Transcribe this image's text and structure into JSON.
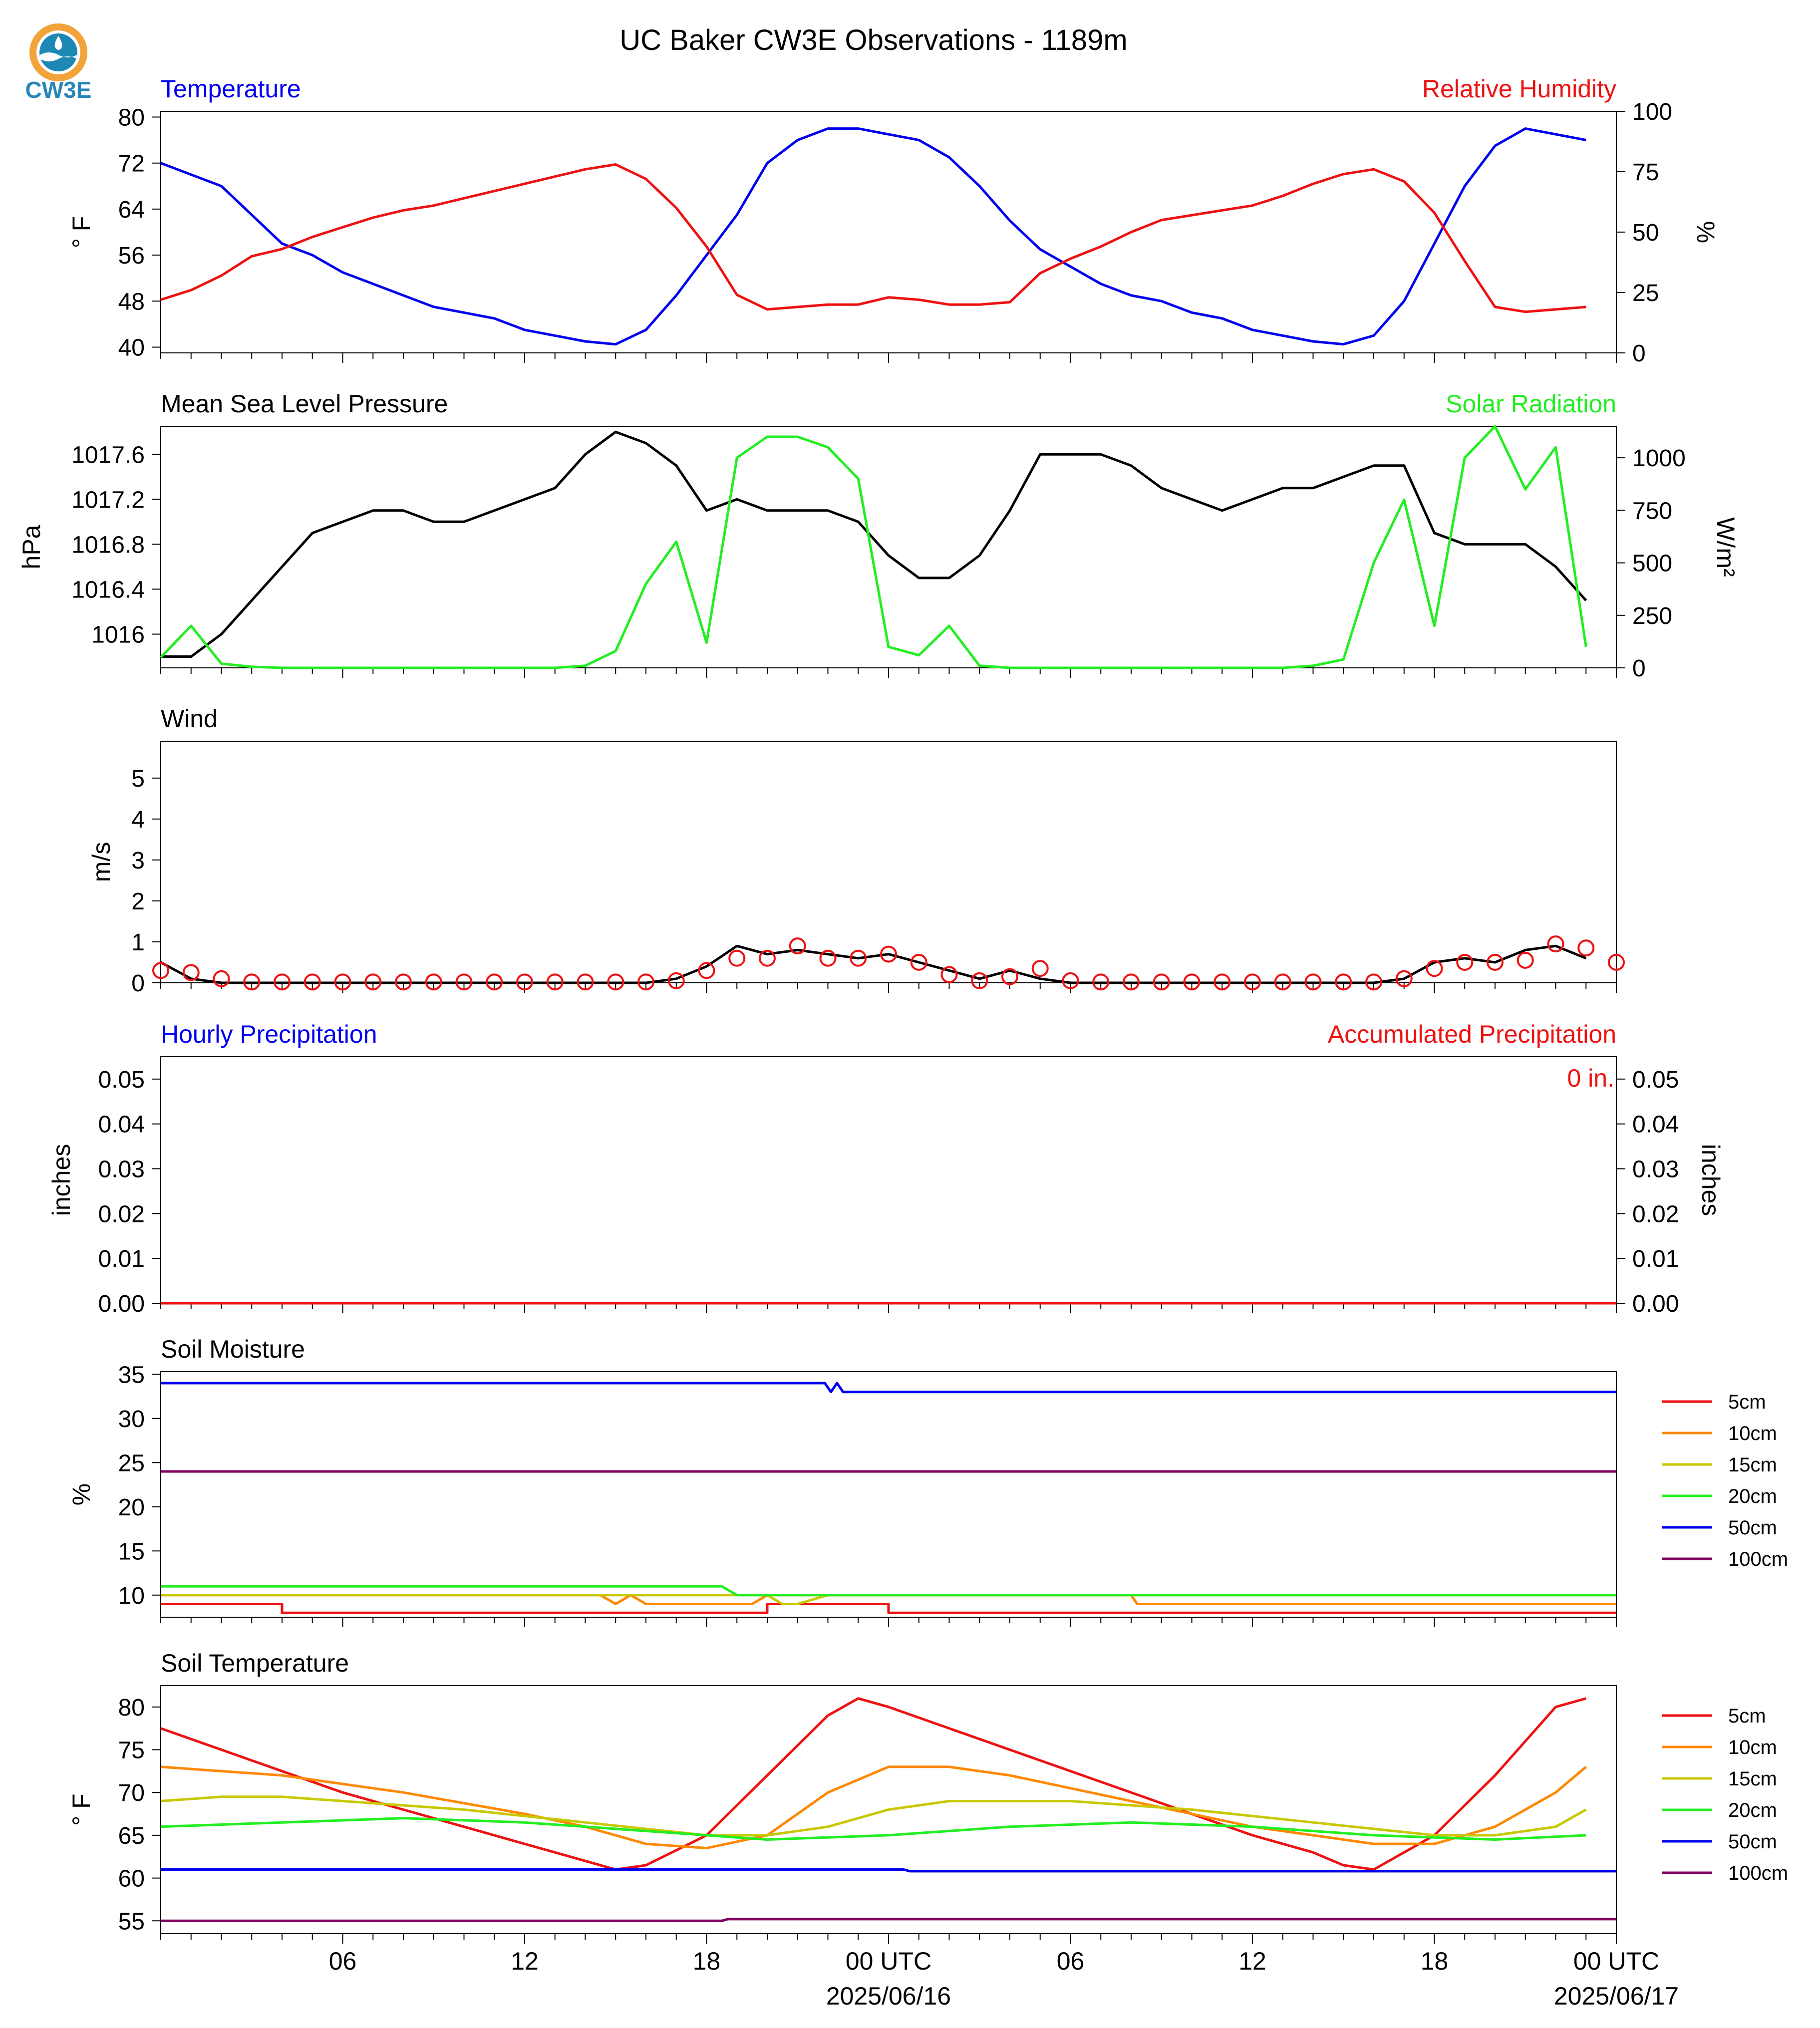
{
  "logo": {
    "text": "CW3E",
    "colors": {
      "ring": "#f2a33a",
      "wave": "#1e88b5",
      "text": "#2a86b8"
    }
  },
  "title": "UC Baker CW3E Observations - 1189m",
  "x_axis": {
    "hour_labels": [
      "06",
      "12",
      "18",
      "00 UTC",
      "06",
      "12",
      "18",
      "00 UTC"
    ],
    "hour_positions": [
      6,
      12,
      18,
      24,
      30,
      36,
      42,
      48
    ],
    "date_labels": [
      "2025/06/16",
      "2025/06/17"
    ],
    "date_positions": [
      24,
      48
    ],
    "range_hours": [
      0,
      48
    ]
  },
  "colors": {
    "blue": "#0000ee",
    "red": "#ee1111",
    "green": "#22ee22",
    "black": "#000000"
  },
  "chart_data": [
    {
      "type": "line",
      "title_left": "Temperature",
      "title_right": "Relative Humidity",
      "ylabel_left": "° F",
      "ylabel_right": "%",
      "ylim_left": [
        39,
        81
      ],
      "yticks_left": [
        40,
        48,
        56,
        64,
        72,
        80
      ],
      "ylim_right": [
        0,
        100
      ],
      "yticks_right": [
        0,
        25,
        50,
        75,
        100
      ],
      "series": [
        {
          "axis": "left",
          "color": "#0000ee",
          "x": [
            0,
            1,
            2,
            3,
            4,
            5,
            6,
            7,
            8,
            9,
            10,
            11,
            12,
            13,
            14,
            15,
            16,
            17,
            18,
            19,
            20,
            21,
            22,
            23,
            24,
            25,
            26,
            27,
            28,
            29,
            30,
            31,
            32,
            33,
            34,
            35,
            36,
            37,
            38,
            39,
            40,
            41,
            42,
            43,
            44,
            45,
            46,
            47
          ],
          "y": [
            72,
            70,
            68,
            63,
            58,
            56,
            53,
            51,
            49,
            47,
            46,
            45,
            43,
            42,
            41,
            40.5,
            43,
            49,
            56,
            63,
            72,
            76,
            78,
            78,
            77,
            76,
            73,
            68,
            62,
            57,
            54,
            51,
            49,
            48,
            46,
            45,
            43,
            42,
            41,
            40.5,
            42,
            48,
            58,
            68,
            75,
            78,
            77,
            76
          ]
        },
        {
          "axis": "right",
          "color": "#ee1111",
          "x": [
            0,
            1,
            2,
            3,
            4,
            5,
            6,
            7,
            8,
            9,
            10,
            11,
            12,
            13,
            14,
            15,
            16,
            17,
            18,
            19,
            20,
            21,
            22,
            23,
            24,
            25,
            26,
            27,
            28,
            29,
            30,
            31,
            32,
            33,
            34,
            35,
            36,
            37,
            38,
            39,
            40,
            41,
            42,
            43,
            44,
            45,
            46,
            47
          ],
          "y": [
            22,
            26,
            32,
            40,
            43,
            48,
            52,
            56,
            59,
            61,
            64,
            67,
            70,
            73,
            76,
            78,
            72,
            60,
            44,
            24,
            18,
            19,
            20,
            20,
            23,
            22,
            20,
            20,
            21,
            33,
            39,
            44,
            50,
            55,
            57,
            59,
            61,
            65,
            70,
            74,
            76,
            71,
            58,
            38,
            19,
            17,
            18,
            19
          ]
        }
      ]
    },
    {
      "type": "line",
      "title_left": "Mean Sea Level Pressure",
      "title_right": "Solar Radiation",
      "ylabel_left": "hPa",
      "ylabel_right": "W/m²",
      "ylim_left": [
        1015.7,
        1017.85
      ],
      "yticks_left": [
        1016.0,
        1016.4,
        1016.8,
        1017.2,
        1017.6
      ],
      "ylim_right": [
        0,
        1150
      ],
      "yticks_right": [
        0,
        250,
        500,
        750,
        1000
      ],
      "series": [
        {
          "axis": "left",
          "color": "#000000",
          "x": [
            0,
            1,
            2,
            3,
            4,
            5,
            6,
            7,
            8,
            9,
            10,
            11,
            12,
            13,
            14,
            15,
            16,
            17,
            18,
            19,
            20,
            21,
            22,
            23,
            24,
            25,
            26,
            27,
            28,
            29,
            30,
            31,
            32,
            33,
            34,
            35,
            36,
            37,
            38,
            39,
            40,
            41,
            42,
            43,
            44,
            45,
            46,
            47
          ],
          "y": [
            1015.8,
            1015.8,
            1016.0,
            1016.3,
            1016.6,
            1016.9,
            1017.0,
            1017.1,
            1017.1,
            1017.0,
            1017.0,
            1017.1,
            1017.2,
            1017.3,
            1017.6,
            1017.8,
            1017.7,
            1017.5,
            1017.1,
            1017.2,
            1017.1,
            1017.1,
            1017.1,
            1017.0,
            1016.7,
            1016.5,
            1016.5,
            1016.7,
            1017.1,
            1017.6,
            1017.6,
            1017.6,
            1017.5,
            1017.3,
            1017.2,
            1017.1,
            1017.2,
            1017.3,
            1017.3,
            1017.4,
            1017.5,
            1017.5,
            1016.9,
            1016.8,
            1016.8,
            1016.8,
            1016.6,
            1016.3
          ]
        },
        {
          "axis": "right",
          "color": "#22ee22",
          "x": [
            0,
            1,
            2,
            3,
            4,
            5,
            6,
            7,
            8,
            9,
            10,
            11,
            12,
            13,
            14,
            15,
            16,
            17,
            18,
            19,
            20,
            21,
            22,
            23,
            24,
            25,
            26,
            27,
            28,
            29,
            30,
            31,
            32,
            33,
            34,
            35,
            36,
            37,
            38,
            39,
            40,
            41,
            42,
            43,
            44,
            45,
            46,
            47
          ],
          "y": [
            50,
            200,
            20,
            5,
            0,
            0,
            0,
            0,
            0,
            0,
            0,
            0,
            0,
            0,
            10,
            80,
            400,
            600,
            120,
            1000,
            1100,
            1100,
            1050,
            900,
            100,
            60,
            200,
            10,
            0,
            0,
            0,
            0,
            0,
            0,
            0,
            0,
            0,
            0,
            10,
            40,
            500,
            800,
            200,
            1000,
            1150,
            850,
            1050,
            100
          ]
        }
      ]
    },
    {
      "type": "line",
      "title_left": "Wind",
      "ylabel_left": "m/s",
      "ylim_left": [
        0,
        5.9
      ],
      "yticks_left": [
        0,
        1,
        2,
        3,
        4,
        5
      ],
      "series": [
        {
          "axis": "left",
          "color": "#000000",
          "x": [
            0,
            1,
            2,
            3,
            4,
            5,
            6,
            7,
            8,
            9,
            10,
            11,
            12,
            13,
            14,
            15,
            16,
            17,
            18,
            19,
            20,
            21,
            22,
            23,
            24,
            25,
            26,
            27,
            28,
            29,
            30,
            31,
            32,
            33,
            34,
            35,
            36,
            37,
            38,
            39,
            40,
            41,
            42,
            43,
            44,
            45,
            46,
            47
          ],
          "y": [
            0.5,
            0.1,
            0,
            0,
            0,
            0,
            0,
            0,
            0,
            0,
            0,
            0,
            0,
            0,
            0,
            0,
            0,
            0.1,
            0.4,
            0.9,
            0.7,
            0.8,
            0.7,
            0.6,
            0.7,
            0.5,
            0.3,
            0.1,
            0.3,
            0.1,
            0,
            0,
            0,
            0,
            0,
            0,
            0,
            0,
            0,
            0,
            0,
            0.1,
            0.5,
            0.6,
            0.5,
            0.8,
            0.9,
            0.6
          ]
        },
        {
          "axis": "left",
          "color": "#ee1111",
          "marker": "circle",
          "x": [
            0,
            1,
            2,
            3,
            4,
            5,
            6,
            7,
            8,
            9,
            10,
            11,
            12,
            13,
            14,
            15,
            16,
            17,
            18,
            19,
            20,
            21,
            22,
            23,
            24,
            25,
            26,
            27,
            28,
            29,
            30,
            31,
            32,
            33,
            34,
            35,
            36,
            37,
            38,
            39,
            40,
            41,
            42,
            43,
            44,
            45,
            46,
            47,
            48
          ],
          "y": [
            0.3,
            0.25,
            0.1,
            0.02,
            0.02,
            0.02,
            0.02,
            0.02,
            0.02,
            0.02,
            0.02,
            0.02,
            0.02,
            0.02,
            0.02,
            0.02,
            0.02,
            0.05,
            0.3,
            0.6,
            0.6,
            0.9,
            0.6,
            0.6,
            0.7,
            0.5,
            0.2,
            0.05,
            0.15,
            0.35,
            0.05,
            0.02,
            0.02,
            0.02,
            0.02,
            0.02,
            0.02,
            0.02,
            0.02,
            0.02,
            0.02,
            0.1,
            0.35,
            0.5,
            0.5,
            0.55,
            0.95,
            0.85,
            0.5
          ]
        }
      ]
    },
    {
      "type": "line",
      "title_left": "Hourly Precipitation",
      "title_right": "Accumulated Precipitation",
      "annotation": "0 in.",
      "ylabel_left": "inches",
      "ylabel_right": "inches",
      "ylim_left": [
        0,
        0.055
      ],
      "yticks_left": [
        "0.00",
        "0.01",
        "0.02",
        "0.03",
        "0.04",
        "0.05"
      ],
      "ylim_right": [
        0,
        0.055
      ],
      "yticks_right": [
        "0.00",
        "0.01",
        "0.02",
        "0.03",
        "0.04",
        "0.05"
      ],
      "series": [
        {
          "axis": "left",
          "color": "#0000ee",
          "x": [
            0,
            48
          ],
          "y": [
            0,
            0
          ]
        },
        {
          "axis": "right",
          "color": "#ee1111",
          "x": [
            0,
            48
          ],
          "y": [
            0,
            0
          ]
        }
      ]
    },
    {
      "type": "line",
      "title_left": "Soil Moisture",
      "ylabel_left": "%",
      "ylim_left": [
        7.5,
        35.3
      ],
      "yticks_left": [
        10,
        15,
        20,
        25,
        30,
        35
      ],
      "legend": [
        "5cm",
        "10cm",
        "15cm",
        "20cm",
        "50cm",
        "100cm"
      ],
      "series": [
        {
          "name": "5cm",
          "color": "#ee1111",
          "x": [
            0,
            4,
            4,
            20,
            20,
            23,
            23,
            24,
            24,
            48
          ],
          "y": [
            9,
            9,
            8,
            8,
            9,
            9,
            9,
            9,
            8,
            8
          ]
        },
        {
          "name": "10cm",
          "color": "#ff8800",
          "x": [
            0,
            14.5,
            15,
            15.5,
            16,
            19.5,
            20,
            32,
            32.2,
            48
          ],
          "y": [
            10,
            10,
            9,
            10,
            9,
            9,
            10,
            10,
            9,
            9
          ]
        },
        {
          "name": "15cm",
          "color": "#c8c800",
          "x": [
            0,
            18,
            20,
            20.5,
            21,
            22,
            48
          ],
          "y": [
            10,
            10,
            10,
            9,
            9,
            10,
            10
          ]
        },
        {
          "name": "20cm",
          "color": "#22ee22",
          "x": [
            0,
            18.5,
            19,
            48
          ],
          "y": [
            11,
            11,
            10,
            10
          ]
        },
        {
          "name": "50cm",
          "color": "#0000ee",
          "x": [
            0,
            21.9,
            22.1,
            22.3,
            22.5,
            48
          ],
          "y": [
            34,
            34,
            33,
            34,
            33,
            33
          ]
        },
        {
          "name": "100cm",
          "color": "#800060",
          "x": [
            0,
            48
          ],
          "y": [
            24,
            24
          ]
        }
      ]
    },
    {
      "type": "line",
      "title_left": "Soil Temperature",
      "ylabel_left": "° F",
      "ylim_left": [
        53.5,
        82.5
      ],
      "yticks_left": [
        55,
        60,
        65,
        70,
        75,
        80
      ],
      "legend": [
        "5cm",
        "10cm",
        "15cm",
        "20cm",
        "50cm",
        "100cm"
      ],
      "series": [
        {
          "name": "5cm",
          "color": "#ee1111",
          "x": [
            0,
            2,
            4,
            6,
            8,
            10,
            12,
            14,
            15,
            16,
            18,
            20,
            22,
            23,
            24,
            26,
            28,
            30,
            32,
            34,
            36,
            38,
            39,
            40,
            42,
            44,
            46,
            47
          ],
          "y": [
            77.5,
            75,
            72.5,
            70,
            68,
            66,
            64,
            62,
            61,
            61.5,
            65,
            72,
            79,
            81,
            80,
            77.5,
            75,
            72.5,
            70,
            67.5,
            65,
            63,
            61.5,
            61,
            65,
            72,
            80,
            81
          ]
        },
        {
          "name": "10cm",
          "color": "#ff8800",
          "x": [
            0,
            4,
            8,
            12,
            14,
            16,
            18,
            20,
            22,
            24,
            26,
            28,
            32,
            36,
            38,
            40,
            42,
            44,
            46,
            47
          ],
          "y": [
            73,
            72,
            70,
            67.5,
            66,
            64,
            63.5,
            65,
            70,
            73,
            73,
            72,
            69,
            66,
            65,
            64,
            64,
            66,
            70,
            73
          ]
        },
        {
          "name": "15cm",
          "color": "#c8c800",
          "x": [
            0,
            2,
            4,
            6,
            10,
            14,
            18,
            20,
            22,
            24,
            26,
            28,
            30,
            34,
            38,
            42,
            44,
            46,
            47
          ],
          "y": [
            69,
            69.5,
            69.5,
            69,
            68,
            66.5,
            65,
            65,
            66,
            68,
            69,
            69,
            69,
            68,
            66.5,
            65,
            65,
            66,
            68
          ]
        },
        {
          "name": "20cm",
          "color": "#22ee22",
          "x": [
            0,
            4,
            8,
            12,
            16,
            20,
            24,
            28,
            32,
            36,
            40,
            44,
            47
          ],
          "y": [
            66,
            66.5,
            67,
            66.5,
            65.5,
            64.5,
            65,
            66,
            66.5,
            66,
            65,
            64.5,
            65
          ]
        },
        {
          "name": "50cm",
          "color": "#0000ee",
          "x": [
            0,
            24.5,
            24.7,
            48
          ],
          "y": [
            61,
            61,
            60.8,
            60.8
          ]
        },
        {
          "name": "100cm",
          "color": "#800060",
          "x": [
            0,
            18.5,
            18.7,
            48
          ],
          "y": [
            55,
            55,
            55.2,
            55.2
          ]
        }
      ]
    }
  ]
}
